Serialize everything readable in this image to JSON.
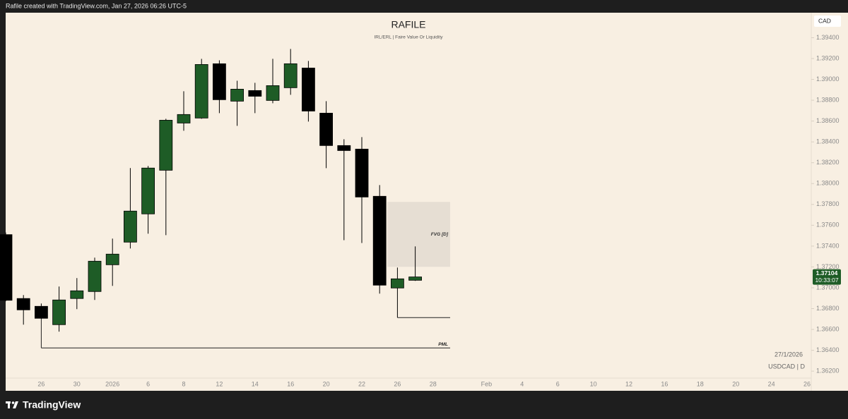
{
  "header": "Rafile created with TradingView.com, Jan 27, 2026 06:26 UTC-5",
  "footer": "TradingView",
  "chart_data": {
    "type": "candlestick",
    "title": "RAFILE",
    "subtitle": "IRL/ERL | Faire Value Or Liquidity",
    "currency": "CAD",
    "date": "27/1/2026",
    "symbol": "USDCAD | D",
    "countdown": "10:33:07",
    "categories": [
      null,
      null,
      "26",
      null,
      "30",
      null,
      "2026",
      null,
      "6",
      null,
      "8",
      null,
      "12",
      null,
      "14",
      null,
      "16",
      null,
      "20",
      null,
      "22",
      null,
      "26",
      null,
      "28",
      null,
      null,
      "Feb",
      null,
      "4",
      null,
      "6",
      null,
      "10",
      null,
      "12",
      null,
      "16",
      null,
      "18",
      null,
      "20",
      null,
      "24",
      null,
      "26"
    ],
    "open": [
      1.3751,
      1.36897,
      1.36822,
      1.36646,
      1.36897,
      1.36964,
      1.37221,
      1.37438,
      1.37709,
      1.38128,
      1.38581,
      1.38629,
      1.3915,
      1.38791,
      1.38893,
      1.38798,
      1.3892,
      1.39109,
      1.38676,
      1.38365,
      1.38331,
      1.37878,
      1.36998,
      1.37072,
      null,
      null,
      null,
      null,
      null,
      null,
      null,
      null,
      null,
      null,
      null,
      null,
      null,
      null,
      null,
      null,
      null,
      null,
      null,
      null,
      null,
      null
    ],
    "high": [
      1.3753,
      1.3693,
      1.36849,
      1.37012,
      1.37093,
      1.37289,
      1.37472,
      1.38149,
      1.38169,
      1.38622,
      1.38886,
      1.39197,
      1.39183,
      1.38987,
      1.38967,
      1.39197,
      1.39292,
      1.39177,
      1.38791,
      1.38426,
      1.38446,
      1.37986,
      1.37194,
      1.37397,
      null,
      null,
      null,
      null,
      null,
      null,
      null,
      null,
      null,
      null,
      null,
      null,
      null,
      null,
      null,
      null,
      null,
      null,
      null,
      null,
      null,
      null
    ],
    "low": [
      1.3687,
      1.36646,
      1.367,
      1.36579,
      1.36795,
      1.36883,
      1.37018,
      1.37377,
      1.37519,
      1.37505,
      1.38507,
      1.38622,
      1.38676,
      1.38554,
      1.38676,
      1.38771,
      1.38852,
      1.38595,
      1.38148,
      1.37457,
      1.3743,
      1.36944,
      1.36714,
      1.37066,
      null,
      null,
      null,
      null,
      null,
      null,
      null,
      null,
      null,
      null,
      null,
      null,
      null,
      null,
      null,
      null,
      null,
      null,
      null,
      null,
      null,
      null
    ],
    "close": [
      1.3688,
      1.36788,
      1.36707,
      1.36883,
      1.36971,
      1.37255,
      1.37323,
      1.37736,
      1.38149,
      1.38608,
      1.38663,
      1.39143,
      1.38805,
      1.38906,
      1.38838,
      1.3894,
      1.3915,
      1.38696,
      1.38365,
      1.38317,
      1.37871,
      1.37025,
      1.37086,
      1.37104,
      null,
      null,
      null,
      null,
      null,
      null,
      null,
      null,
      null,
      null,
      null,
      null,
      null,
      null,
      null,
      null,
      null,
      null,
      null,
      null,
      null,
      null
    ],
    "up_color": "#1e5c26",
    "down_color": "#000000",
    "last_color": "#1e5c26",
    "ylim": [
      1.3614,
      1.3964
    ],
    "yticks": [
      {
        "value": 1.362,
        "label": "1.36200"
      },
      {
        "value": 1.364,
        "label": "1.36400"
      },
      {
        "value": 1.366,
        "label": "1.36600"
      },
      {
        "value": 1.368,
        "label": "1.36800"
      },
      {
        "value": 1.37,
        "label": "1.37000"
      },
      {
        "value": 1.372,
        "label": "1.37200"
      },
      {
        "value": 1.374,
        "label": "1.37400"
      },
      {
        "value": 1.376,
        "label": "1.37600"
      },
      {
        "value": 1.378,
        "label": "1.37800"
      },
      {
        "value": 1.38,
        "label": "1.38000"
      },
      {
        "value": 1.382,
        "label": "1.38200"
      },
      {
        "value": 1.384,
        "label": "1.38400"
      },
      {
        "value": 1.386,
        "label": "1.38600"
      },
      {
        "value": 1.388,
        "label": "1.38800"
      },
      {
        "value": 1.39,
        "label": "1.39000"
      },
      {
        "value": 1.392,
        "label": "1.39200"
      },
      {
        "value": 1.394,
        "label": "1.39400"
      }
    ],
    "fvg": {
      "label": "FVG [D]",
      "top": 1.37824,
      "bottom": 1.37201,
      "color": "#e6ded3"
    },
    "pml": {
      "label": "PML",
      "value": 1.36423
    },
    "level": {
      "value": 1.36714
    }
  }
}
